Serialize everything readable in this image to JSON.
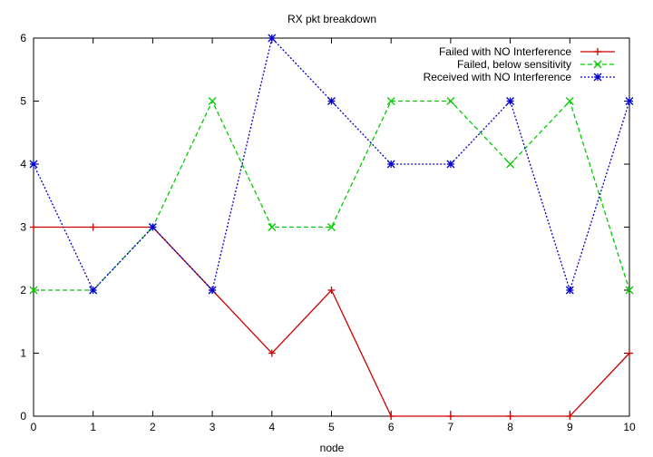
{
  "chart_data": {
    "type": "line",
    "title": "RX pkt breakdown",
    "xlabel": "node",
    "ylabel": "",
    "xlim": [
      0,
      10
    ],
    "ylim": [
      0,
      6
    ],
    "x_ticks": [
      0,
      1,
      2,
      3,
      4,
      5,
      6,
      7,
      8,
      9,
      10
    ],
    "y_ticks": [
      0,
      1,
      2,
      3,
      4,
      5,
      6
    ],
    "grid": false,
    "legend_position": "top-right",
    "x": [
      0,
      1,
      2,
      3,
      4,
      5,
      6,
      7,
      8,
      9,
      10
    ],
    "series": [
      {
        "name": "Failed with NO Interference",
        "color": "#cc0000",
        "dash": "solid",
        "marker": "plus",
        "values": [
          3,
          3,
          3,
          2,
          1,
          2,
          0,
          0,
          0,
          0,
          1
        ]
      },
      {
        "name": "Failed, below sensitivity",
        "color": "#00cc00",
        "dash": "dashed",
        "marker": "cross",
        "values": [
          2,
          2,
          3,
          5,
          3,
          3,
          5,
          5,
          4,
          5,
          2
        ]
      },
      {
        "name": "Received with NO Interference",
        "color": "#0000cc",
        "dash": "dotted",
        "marker": "star",
        "values": [
          4,
          2,
          3,
          2,
          6,
          5,
          4,
          4,
          5,
          2,
          5
        ]
      }
    ]
  }
}
